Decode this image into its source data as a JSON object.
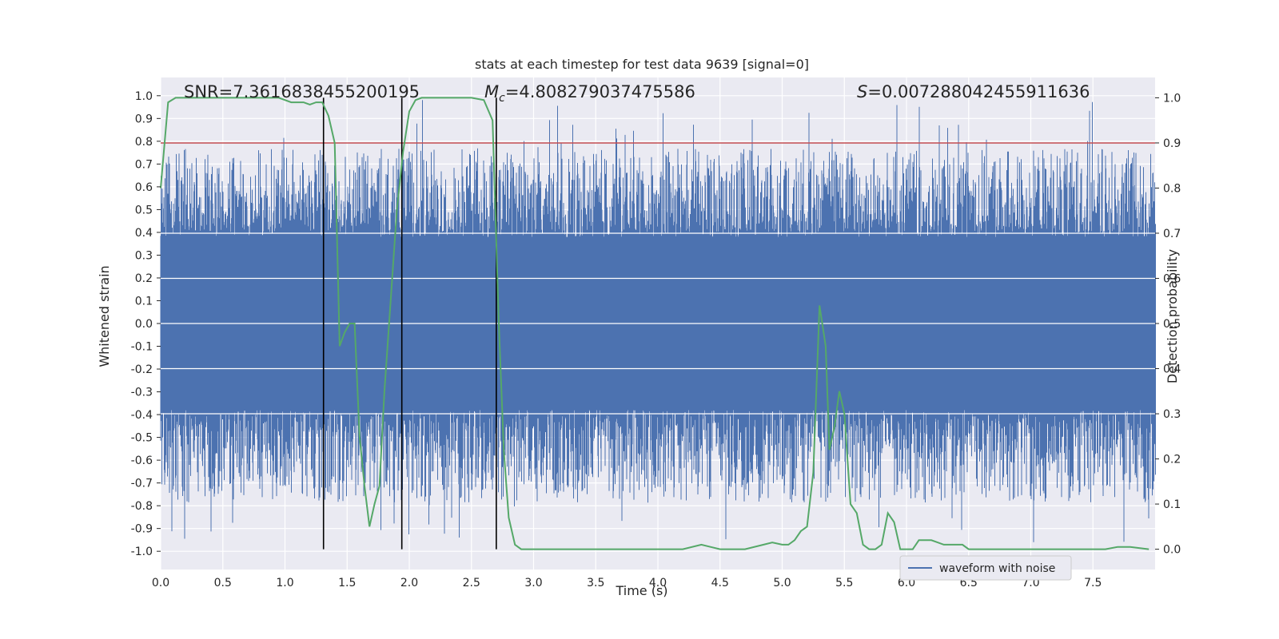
{
  "chart_data": {
    "type": "line",
    "title": "stats at each timestep for test data 9639 [signal=0]",
    "xlabel": "Time (s)",
    "ylabel_left": "Whitened strain",
    "ylabel_right": "Detection probability",
    "xlim": [
      0.0,
      8.0
    ],
    "ylim_left": [
      -1.08,
      1.08
    ],
    "ylim_right": [
      -0.045,
      1.045
    ],
    "x_ticks": [
      0.0,
      0.5,
      1.0,
      1.5,
      2.0,
      2.5,
      3.0,
      3.5,
      4.0,
      4.5,
      5.0,
      5.5,
      6.0,
      6.5,
      7.0,
      7.5
    ],
    "x_tick_labels": [
      "0.0",
      "0.5",
      "1.0",
      "1.5",
      "2.0",
      "2.5",
      "3.0",
      "3.5",
      "4.0",
      "4.5",
      "5.0",
      "5.5",
      "6.0",
      "6.5",
      "7.0",
      "7.5"
    ],
    "y_left_ticks": [
      1.0,
      0.9,
      0.8,
      0.7,
      0.6,
      0.5,
      0.4,
      0.3,
      0.2,
      0.1,
      0.0,
      -0.1,
      -0.2,
      -0.3,
      -0.4,
      -0.5,
      -0.6,
      -0.7,
      -0.8,
      -0.9,
      -1.0
    ],
    "y_left_tick_labels": [
      "1.0",
      "0.9",
      "0.8",
      "0.7",
      "0.6",
      "0.5",
      "0.4",
      "0.3",
      "0.2",
      "0.1",
      "0.0",
      "-0.1",
      "-0.2",
      "-0.3",
      "-0.4",
      "-0.5",
      "-0.6",
      "-0.7",
      "-0.8",
      "-0.9",
      "-1.0"
    ],
    "y_right_ticks": [
      1.0,
      0.9,
      0.8,
      0.7,
      0.6,
      0.5,
      0.4,
      0.3,
      0.2,
      0.1,
      0.0
    ],
    "y_right_tick_labels": [
      "1.0",
      "0.9",
      "0.8",
      "0.7",
      "0.6",
      "0.5",
      "0.4",
      "0.3",
      "0.2",
      "0.1",
      "0.0"
    ],
    "grid": true,
    "legend": {
      "entries": [
        "waveform with noise"
      ],
      "placement": "lower-right"
    },
    "annotations": {
      "snr": "SNR=7.3616838455200195",
      "mc_symbol": "M",
      "mc_sub": "c",
      "mc_value": "=4.808279037475586",
      "s_symbol": "S",
      "s_value": "=0.007288042455911636"
    },
    "threshold_line": {
      "axis": "right",
      "y": 0.9
    },
    "vertical_lines_x": [
      1.31,
      1.94,
      2.7
    ],
    "series": [
      {
        "name": "waveform with noise",
        "axis": "left",
        "style": "dense-noise",
        "x_range": [
          0.0,
          8.0
        ],
        "core_amplitude": 0.38,
        "typical_peak": 0.6,
        "max_peak": 1.0,
        "min_trough": -0.97
      },
      {
        "axis": "right",
        "x": [
          0.0,
          0.06,
          0.12,
          0.2,
          0.4,
          0.6,
          0.8,
          0.95,
          1.05,
          1.15,
          1.2,
          1.25,
          1.3,
          1.35,
          1.4,
          1.44,
          1.48,
          1.52,
          1.56,
          1.6,
          1.64,
          1.68,
          1.72,
          1.76,
          1.8,
          1.85,
          1.9,
          1.95,
          2.0,
          2.05,
          2.1,
          2.3,
          2.5,
          2.6,
          2.67,
          2.72,
          2.76,
          2.8,
          2.85,
          2.9,
          3.0,
          3.2,
          3.4,
          3.6,
          3.8,
          4.0,
          4.2,
          4.35,
          4.5,
          4.7,
          4.85,
          4.92,
          5.0,
          5.05,
          5.1,
          5.15,
          5.2,
          5.25,
          5.3,
          5.35,
          5.38,
          5.42,
          5.46,
          5.5,
          5.55,
          5.6,
          5.65,
          5.7,
          5.75,
          5.8,
          5.85,
          5.9,
          5.95,
          6.0,
          6.05,
          6.1,
          6.15,
          6.2,
          6.25,
          6.3,
          6.35,
          6.4,
          6.45,
          6.5,
          6.6,
          6.8,
          7.0,
          7.2,
          7.4,
          7.6,
          7.7,
          7.8,
          7.95
        ],
        "y": [
          0.8,
          0.99,
          1.0,
          1.0,
          1.0,
          1.0,
          1.0,
          1.0,
          0.99,
          0.99,
          0.985,
          0.99,
          0.99,
          0.96,
          0.9,
          0.45,
          0.48,
          0.5,
          0.5,
          0.25,
          0.14,
          0.05,
          0.1,
          0.14,
          0.35,
          0.55,
          0.75,
          0.88,
          0.97,
          0.995,
          1.0,
          1.0,
          1.0,
          0.995,
          0.95,
          0.5,
          0.22,
          0.07,
          0.01,
          0.0,
          0.0,
          0.0,
          0.0,
          0.0,
          0.0,
          0.0,
          0.0,
          0.01,
          0.0,
          0.0,
          0.01,
          0.015,
          0.01,
          0.01,
          0.02,
          0.04,
          0.05,
          0.17,
          0.54,
          0.45,
          0.22,
          0.27,
          0.35,
          0.3,
          0.1,
          0.08,
          0.01,
          0.0,
          0.0,
          0.01,
          0.08,
          0.06,
          0.0,
          0.0,
          0.0,
          0.02,
          0.02,
          0.02,
          0.015,
          0.01,
          0.01,
          0.01,
          0.01,
          0.0,
          0.0,
          0.0,
          0.0,
          0.0,
          0.0,
          0.0,
          0.005,
          0.005,
          0.0
        ]
      }
    ]
  }
}
